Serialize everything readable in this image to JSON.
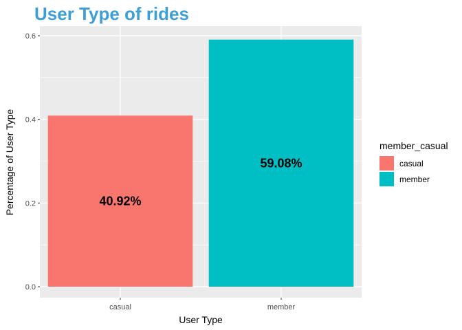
{
  "chart_data": {
    "type": "bar",
    "title": "User Type of rides",
    "xlabel": "User Type",
    "ylabel": "Percentage of User Type",
    "categories": [
      "casual",
      "member"
    ],
    "values": [
      0.4092,
      0.5908
    ],
    "data_labels": [
      "40.92%",
      "59.08%"
    ],
    "colors": [
      "#F8766D",
      "#00BFC4"
    ],
    "ylim": [
      0,
      0.62
    ],
    "yticks": [
      0.0,
      0.2,
      0.4,
      0.6
    ],
    "ytick_labels": [
      "0.0",
      "0.2",
      "0.4",
      "0.6"
    ],
    "grid": true,
    "legend": {
      "title": "member_casual",
      "entries": [
        "casual",
        "member"
      ],
      "position": "right"
    },
    "title_color": "#3D9FD6",
    "panel_background": "#EBEBEB"
  }
}
